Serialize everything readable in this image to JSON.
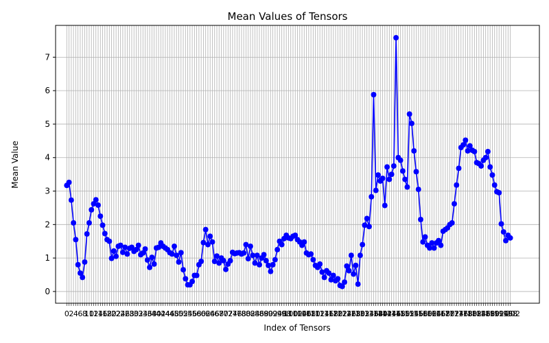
{
  "chart_data": {
    "type": "line",
    "title": "Mean Values of Tensors",
    "xlabel": "Index of Tensors",
    "ylabel": "Mean Value",
    "xlim": [
      -5,
      211
    ],
    "ylim": [
      -0.35,
      7.95
    ],
    "yticks": [
      0,
      1,
      2,
      3,
      4,
      5,
      6,
      7
    ],
    "grid": true,
    "legend": "none",
    "x_tick_step": 1,
    "x_tick_labels_visible_start": "0",
    "x_tick_labels_visible_end": "202",
    "series": [
      {
        "color": "#0000ff",
        "marker": "circle",
        "values": [
          3.17,
          3.26,
          2.73,
          2.05,
          1.55,
          0.8,
          0.55,
          0.42,
          0.88,
          1.72,
          2.05,
          2.44,
          2.62,
          2.74,
          2.58,
          2.25,
          1.98,
          1.73,
          1.55,
          1.5,
          0.99,
          1.21,
          1.05,
          1.35,
          1.38,
          1.17,
          1.32,
          1.12,
          1.29,
          1.32,
          1.2,
          1.25,
          1.38,
          1.1,
          1.15,
          1.27,
          0.94,
          0.72,
          1.02,
          0.82,
          1.3,
          1.32,
          1.45,
          1.35,
          1.3,
          1.25,
          1.16,
          1.12,
          1.35,
          1.08,
          0.88,
          1.16,
          0.65,
          0.38,
          0.2,
          0.2,
          0.3,
          0.48,
          0.48,
          0.8,
          0.9,
          1.46,
          1.85,
          1.4,
          1.65,
          1.48,
          0.9,
          1.06,
          0.85,
          1.0,
          0.92,
          0.66,
          0.82,
          0.92,
          1.17,
          1.13,
          1.15,
          1.16,
          1.12,
          1.15,
          1.4,
          0.98,
          1.35,
          1.08,
          0.85,
          1.08,
          0.8,
          1.0,
          1.1,
          0.92,
          0.78,
          0.6,
          0.8,
          0.95,
          1.25,
          1.5,
          1.4,
          1.58,
          1.68,
          1.6,
          1.58,
          1.65,
          1.68,
          1.55,
          1.48,
          1.38,
          1.48,
          1.15,
          1.1,
          1.12,
          0.95,
          0.78,
          0.72,
          0.82,
          0.58,
          0.42,
          0.62,
          0.55,
          0.35,
          0.48,
          0.32,
          0.38,
          0.18,
          0.15,
          0.28,
          0.76,
          0.62,
          1.08,
          0.52,
          0.78,
          0.22,
          1.08,
          1.4,
          1.98,
          2.18,
          1.94,
          2.83,
          5.88,
          3.02,
          3.48,
          3.3,
          3.38,
          2.57,
          3.72,
          3.35,
          3.5,
          3.75,
          7.58,
          4.0,
          3.92,
          3.6,
          3.35,
          3.12,
          5.3,
          5.02,
          4.2,
          3.58,
          3.05,
          2.15,
          1.48,
          1.63,
          1.38,
          1.3,
          1.45,
          1.3,
          1.45,
          1.52,
          1.38,
          1.8,
          1.85,
          1.9,
          2.0,
          2.05,
          2.62,
          3.18,
          3.68,
          4.3,
          4.38,
          4.52,
          4.2,
          4.35,
          4.22,
          4.18,
          3.85,
          3.82,
          3.75,
          3.92,
          4.0,
          4.18,
          3.72,
          3.48,
          3.18,
          2.98,
          2.95,
          2.02,
          1.78,
          1.52,
          1.68,
          1.6
        ]
      }
    ]
  }
}
